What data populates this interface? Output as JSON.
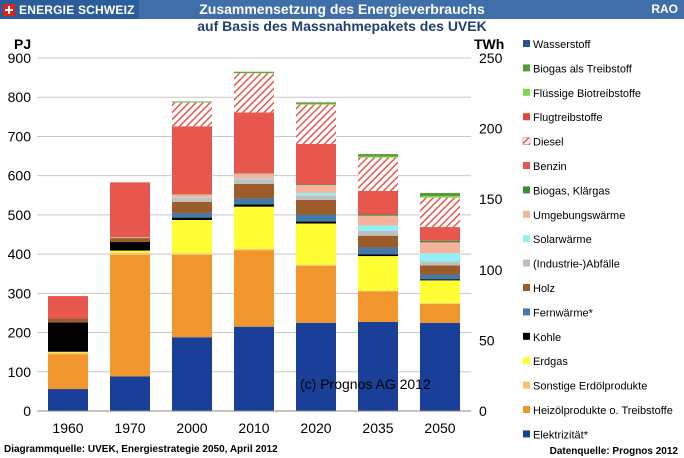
{
  "header": {
    "brand": "ENERGIE SCHWEIZ",
    "title": "Zusammensetzung des Energieverbrauchs",
    "subtitle": "auf Basis des Massnahmepakets des UVEK",
    "corner": "RAO"
  },
  "footer": {
    "source_left": "Diagrammquelle: UVEK, Energiestrategie 2050, April 2012",
    "source_right": "Datenquelle: Prognos 2012"
  },
  "chart_data": {
    "type": "bar",
    "stacked": true,
    "title": "Zusammensetzung des Energieverbrauchs",
    "subtitle": "auf Basis des Massnahmepakets des UVEK",
    "ylabel": "PJ",
    "y2label": "TWh",
    "ylim": [
      0,
      900
    ],
    "yticks": [
      0,
      100,
      200,
      300,
      400,
      500,
      600,
      700,
      800,
      900
    ],
    "y2lim": [
      0,
      250
    ],
    "y2ticks": [
      0,
      50,
      100,
      150,
      200,
      250
    ],
    "grid": true,
    "legend_position": "right",
    "annotation": "(c) Prognos  AG 2012",
    "categories": [
      "1960",
      "1970",
      "2000",
      "2010",
      "2020",
      "2035",
      "2050"
    ],
    "series": [
      {
        "name": "Elektrizität*",
        "color": "#1a3f99",
        "values": [
          56,
          88,
          188,
          215,
          225,
          227,
          225
        ]
      },
      {
        "name": "Heizölprodukte o. Treibstoffe",
        "color": "#f0962d",
        "values": [
          89,
          310,
          210,
          195,
          145,
          78,
          48
        ]
      },
      {
        "name": "Sonstige Erdölprodukte",
        "color": "#f9c36a",
        "values": [
          4,
          6,
          4,
          3,
          3,
          2,
          2
        ]
      },
      {
        "name": "Erdgas",
        "color": "#ffff33",
        "values": [
          2,
          5,
          85,
          108,
          105,
          88,
          58
        ]
      },
      {
        "name": "Kohle",
        "color": "#000000",
        "values": [
          75,
          22,
          6,
          6,
          5,
          4,
          3
        ]
      },
      {
        "name": "Fernwärme*",
        "color": "#4478a8",
        "values": [
          0,
          0,
          12,
          15,
          18,
          18,
          12
        ]
      },
      {
        "name": "Holz",
        "color": "#9c5c2a",
        "values": [
          10,
          10,
          28,
          37,
          37,
          30,
          23
        ]
      },
      {
        "name": "(Industrie-)Abfälle",
        "color": "#c0c0c0",
        "values": [
          0,
          2,
          10,
          12,
          12,
          12,
          10
        ]
      },
      {
        "name": "Solarwärme",
        "color": "#8ff0f5",
        "values": [
          0,
          0,
          1,
          2,
          6,
          14,
          21
        ]
      },
      {
        "name": "Umgebungswärme",
        "color": "#f5b39d",
        "values": [
          0,
          0,
          8,
          12,
          20,
          25,
          28
        ]
      },
      {
        "name": "Biogas, Klärgas",
        "color": "#3d8c3d",
        "values": [
          0,
          0,
          1,
          1,
          2,
          3,
          4
        ]
      },
      {
        "name": "Benzin",
        "color": "#e8574d",
        "values": [
          57,
          140,
          173,
          155,
          103,
          60,
          35
        ]
      },
      {
        "name": "Diesel",
        "color": "#e8574d",
        "pattern": "hatched",
        "values": [
          0,
          0,
          60,
          100,
          100,
          85,
          75
        ]
      },
      {
        "name": "Flugtreibstoffe",
        "color": "#e8403a",
        "values": [
          0,
          0,
          0,
          0,
          0,
          0,
          0
        ]
      },
      {
        "name": "Flüssige Biotreibstoffe",
        "color": "#7fd64a",
        "values": [
          0,
          0,
          1,
          1,
          2,
          3,
          4
        ]
      },
      {
        "name": "Biogas als Treibstoff",
        "color": "#5a9a3a",
        "values": [
          0,
          0,
          2,
          3,
          4,
          6,
          8
        ]
      },
      {
        "name": "Wasserstoff",
        "color": "#2b4f99",
        "values": [
          0,
          0,
          0,
          0,
          0,
          0,
          0
        ]
      }
    ],
    "legend_order": [
      "Wasserstoff",
      "Biogas als Treibstoff",
      "Flüssige Biotreibstoffe",
      "Flugtreibstoffe",
      "Diesel",
      "Benzin",
      "Biogas, Klärgas",
      "Umgebungswärme",
      "Solarwärme",
      "(Industrie-)Abfälle",
      "Holz",
      "Fernwärme*",
      "Kohle",
      "Erdgas",
      "Sonstige Erdölprodukte",
      "Heizölprodukte o. Treibstoffe",
      "Elektrizität*"
    ]
  }
}
